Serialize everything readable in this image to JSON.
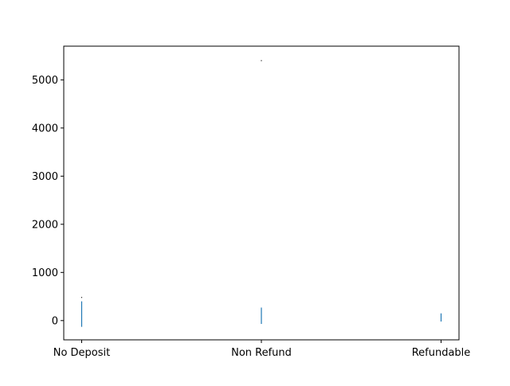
{
  "chart_data": {
    "type": "box",
    "title": "",
    "xlabel": "",
    "ylabel": "",
    "categories": [
      "No Deposit",
      "Non Refund",
      "Refundable"
    ],
    "ylim": [
      -400,
      5700
    ],
    "yticks": [
      0,
      1000,
      2000,
      3000,
      4000,
      5000
    ],
    "ytick_labels": [
      "0",
      "1000",
      "2000",
      "3000",
      "4000",
      "5000"
    ],
    "grid": false,
    "legend": "none",
    "series": [
      {
        "category": "No Deposit",
        "whisker_low": -130,
        "whisker_high": 400,
        "outliers": [
          480
        ]
      },
      {
        "category": "Non Refund",
        "whisker_low": -70,
        "whisker_high": 270,
        "outliers": [
          5400
        ]
      },
      {
        "category": "Refundable",
        "whisker_low": -20,
        "whisker_high": 150,
        "outliers": []
      }
    ],
    "colors": {
      "box": "#1f77b4",
      "outlier": "#000000",
      "axes": "#000000"
    }
  }
}
